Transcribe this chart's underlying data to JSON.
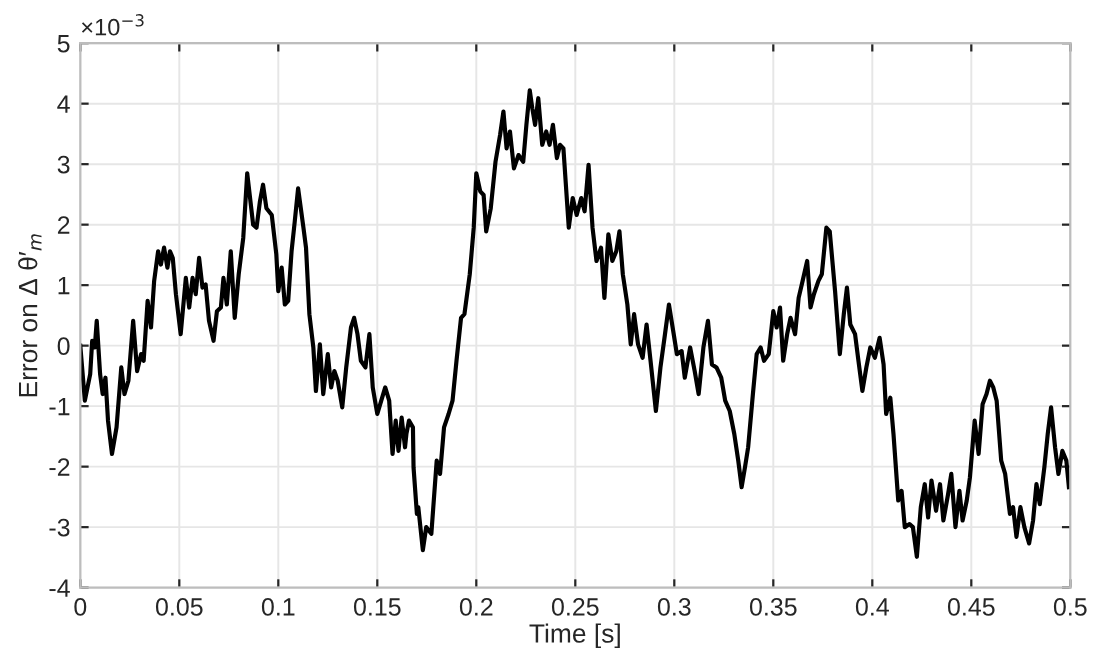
{
  "chart_data": {
    "type": "line",
    "xlabel": "Time [s]",
    "ylabel": "Error on Δ θ′$_{m}$",
    "annotations": [
      "×10$^{−3}$"
    ],
    "xlim": [
      0,
      0.5
    ],
    "ylim": [
      -4,
      5
    ],
    "xticks": [
      0,
      0.05,
      0.1,
      0.15,
      0.2,
      0.25,
      0.3,
      0.35,
      0.4,
      0.45,
      0.5
    ],
    "yticks": [
      -4,
      -3,
      -2,
      -1,
      0,
      1,
      2,
      3,
      4,
      5
    ],
    "grid": true,
    "line_style": "solid",
    "marker": "none",
    "series": [
      {
        "color": "#000000",
        "x": [
          0,
          0.0023,
          0.005,
          0.006,
          0.0073,
          0.0083,
          0.01,
          0.0113,
          0.0127,
          0.014,
          0.016,
          0.0183,
          0.0207,
          0.0223,
          0.0243,
          0.0267,
          0.0287,
          0.0307,
          0.032,
          0.034,
          0.0357,
          0.0373,
          0.0393,
          0.0407,
          0.0423,
          0.044,
          0.0453,
          0.0467,
          0.0483,
          0.0507,
          0.0533,
          0.055,
          0.0567,
          0.0583,
          0.06,
          0.0617,
          0.0633,
          0.065,
          0.0673,
          0.069,
          0.071,
          0.0723,
          0.074,
          0.076,
          0.078,
          0.08,
          0.0823,
          0.0843,
          0.0873,
          0.089,
          0.0907,
          0.0923,
          0.094,
          0.0967,
          0.099,
          0.1,
          0.1017,
          0.1033,
          0.105,
          0.1067,
          0.1083,
          0.11,
          0.1127,
          0.114,
          0.1157,
          0.1177,
          0.119,
          0.121,
          0.1227,
          0.125,
          0.1267,
          0.1283,
          0.13,
          0.1323,
          0.1343,
          0.1367,
          0.1383,
          0.14,
          0.1417,
          0.144,
          0.146,
          0.1477,
          0.15,
          0.152,
          0.154,
          0.156,
          0.1577,
          0.1593,
          0.1607,
          0.1623,
          0.164,
          0.1647,
          0.166,
          0.168,
          0.1683,
          0.17,
          0.1707,
          0.173,
          0.1747,
          0.1773,
          0.18,
          0.1817,
          0.1837,
          0.186,
          0.188,
          0.19,
          0.1923,
          0.194,
          0.1967,
          0.1987,
          0.2,
          0.202,
          0.2037,
          0.205,
          0.2073,
          0.2097,
          0.212,
          0.2137,
          0.2153,
          0.217,
          0.219,
          0.2213,
          0.2237,
          0.2253,
          0.227,
          0.2283,
          0.2297,
          0.2313,
          0.2333,
          0.2353,
          0.237,
          0.2387,
          0.2407,
          0.2423,
          0.244,
          0.2467,
          0.2487,
          0.2507,
          0.253,
          0.2547,
          0.2567,
          0.2587,
          0.2607,
          0.263,
          0.2647,
          0.2667,
          0.2687,
          0.2707,
          0.2723,
          0.274,
          0.2763,
          0.278,
          0.2797,
          0.2817,
          0.284,
          0.286,
          0.288,
          0.2907,
          0.293,
          0.2953,
          0.2973,
          0.2997,
          0.3013,
          0.3037,
          0.3053,
          0.308,
          0.3103,
          0.3123,
          0.3147,
          0.317,
          0.319,
          0.3213,
          0.3237,
          0.3257,
          0.328,
          0.3303,
          0.3323,
          0.334,
          0.3357,
          0.3373,
          0.3397,
          0.3416,
          0.3436,
          0.3453,
          0.3477,
          0.35,
          0.3517,
          0.3534,
          0.355,
          0.357,
          0.3587,
          0.361,
          0.3628,
          0.3648,
          0.3671,
          0.3688,
          0.3705,
          0.3728,
          0.3745,
          0.3768,
          0.3785,
          0.3812,
          0.3836,
          0.3856,
          0.3872,
          0.3889,
          0.3913,
          0.393,
          0.395,
          0.397,
          0.399,
          0.4013,
          0.4037,
          0.4057,
          0.407,
          0.4091,
          0.4107,
          0.4131,
          0.4148,
          0.4164,
          0.4188,
          0.4205,
          0.4225,
          0.4245,
          0.4265,
          0.4282,
          0.4299,
          0.4322,
          0.4342,
          0.4359,
          0.4383,
          0.4399,
          0.442,
          0.444,
          0.4456,
          0.4477,
          0.4493,
          0.4517,
          0.4537,
          0.4557,
          0.4577,
          0.4594,
          0.4611,
          0.4628,
          0.4651,
          0.4671,
          0.4695,
          0.4711,
          0.4728,
          0.4748,
          0.4768,
          0.4792,
          0.4812,
          0.4829,
          0.4846,
          0.4869,
          0.4886,
          0.4903,
          0.4923,
          0.494,
          0.496,
          0.498,
          0.4993
        ],
        "values": [
          0,
          -0.91,
          -0.47,
          0.08,
          -0.03,
          0.41,
          -0.47,
          -0.8,
          -0.53,
          -1.24,
          -1.79,
          -1.35,
          -0.36,
          -0.8,
          -0.58,
          0.41,
          -0.42,
          -0.14,
          -0.25,
          0.74,
          0.3,
          1.07,
          1.56,
          1.34,
          1.62,
          1.29,
          1.56,
          1.45,
          0.85,
          0.19,
          1.12,
          0.63,
          1.12,
          0.85,
          1.45,
          0.96,
          1.01,
          0.41,
          0.08,
          0.57,
          0.63,
          1.12,
          0.68,
          1.56,
          0.46,
          1.18,
          1.78,
          2.85,
          2.0,
          1.95,
          2.38,
          2.66,
          2.27,
          2.16,
          1.51,
          0.9,
          1.29,
          0.68,
          0.74,
          1.56,
          2.05,
          2.6,
          1.95,
          1.62,
          0.52,
          -0.03,
          -0.75,
          0.02,
          -0.8,
          -0.14,
          -0.69,
          -0.42,
          -0.58,
          -1.02,
          -0.36,
          0.3,
          0.46,
          0.19,
          -0.25,
          -0.36,
          0.19,
          -0.69,
          -1.13,
          -0.91,
          -0.69,
          -0.91,
          -1.79,
          -1.24,
          -1.74,
          -1.19,
          -1.68,
          -1.46,
          -1.24,
          -1.35,
          -2.01,
          -2.78,
          -2.67,
          -3.38,
          -3.0,
          -3.11,
          -1.9,
          -2.12,
          -1.35,
          -1.13,
          -0.91,
          -0.25,
          0.46,
          0.52,
          1.18,
          1.95,
          2.85,
          2.55,
          2.49,
          1.89,
          2.27,
          3.04,
          3.48,
          3.87,
          3.26,
          3.54,
          2.93,
          3.15,
          3.04,
          3.65,
          4.22,
          3.92,
          3.65,
          4.09,
          3.32,
          3.54,
          3.32,
          3.65,
          3.1,
          3.32,
          3.26,
          1.95,
          2.44,
          2.16,
          2.44,
          2.22,
          2.99,
          1.95,
          1.4,
          1.62,
          0.79,
          1.84,
          1.4,
          1.56,
          1.89,
          1.18,
          0.68,
          0.02,
          0.52,
          0.02,
          -0.2,
          0.35,
          -0.25,
          -1.08,
          -0.36,
          0.19,
          0.68,
          0.19,
          -0.14,
          -0.09,
          -0.53,
          -0.03,
          -0.42,
          -0.8,
          -0.03,
          0.41,
          -0.31,
          -0.36,
          -0.53,
          -0.91,
          -1.08,
          -1.46,
          -1.9,
          -2.34,
          -2.01,
          -1.68,
          -0.8,
          -0.14,
          -0.03,
          -0.25,
          -0.14,
          0.57,
          0.3,
          0.63,
          -0.25,
          0.19,
          0.46,
          0.19,
          0.79,
          1.07,
          1.4,
          0.63,
          0.85,
          1.07,
          1.18,
          1.95,
          1.89,
          0.9,
          -0.14,
          0.52,
          0.96,
          0.35,
          0.19,
          -0.25,
          -0.75,
          -0.36,
          -0.03,
          -0.2,
          0.13,
          -0.31,
          -1.13,
          -0.86,
          -1.46,
          -2.56,
          -2.4,
          -3.0,
          -2.95,
          -3.0,
          -3.49,
          -2.67,
          -2.29,
          -2.84,
          -2.23,
          -2.73,
          -2.29,
          -2.89,
          -2.45,
          -2.12,
          -3.0,
          -2.4,
          -2.89,
          -2.56,
          -2.18,
          -1.24,
          -1.79,
          -0.97,
          -0.8,
          -0.58,
          -0.69,
          -0.91,
          -1.9,
          -2.12,
          -2.78,
          -2.67,
          -3.16,
          -2.67,
          -3.0,
          -3.27,
          -2.89,
          -2.29,
          -2.62,
          -2.01,
          -1.46,
          -1.02,
          -1.68,
          -2.12,
          -1.74,
          -1.9,
          -2.34
        ]
      }
    ]
  }
}
